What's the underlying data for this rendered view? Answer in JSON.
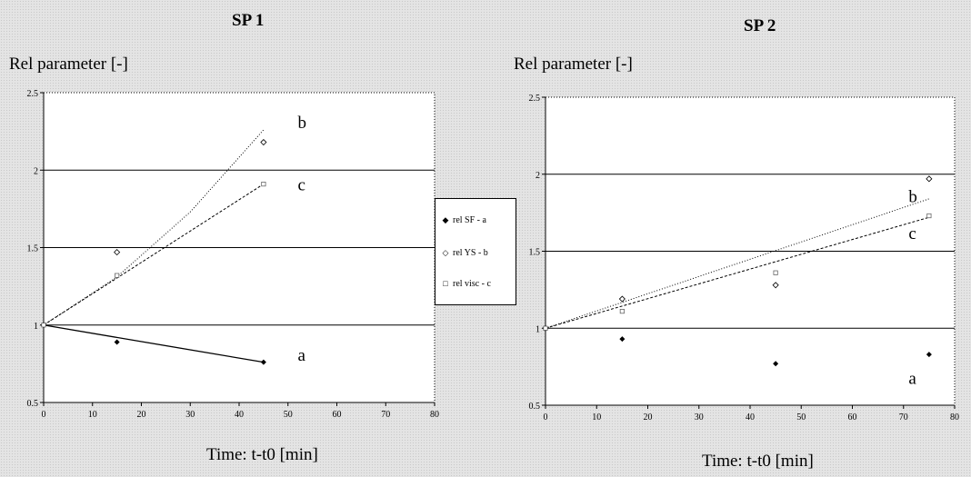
{
  "chart_data": [
    {
      "type": "scatter",
      "title": "SP 1",
      "ylabel": "Rel parameter [-]",
      "xlabel": "Time: t-t0 [min]",
      "xlim": [
        0,
        80
      ],
      "ylim": [
        0.5,
        2.5
      ],
      "xticks": [
        "0",
        "10",
        "20",
        "30",
        "40",
        "50",
        "60",
        "70",
        "80"
      ],
      "yticks": [
        "0.5",
        "1",
        "1.5",
        "2",
        "2.5"
      ],
      "gridlines_y": [
        1,
        1.5,
        2
      ],
      "series": [
        {
          "name": "rel SF - a",
          "label": "a",
          "x": [
            0,
            15,
            45
          ],
          "y": [
            1,
            0.89,
            0.76
          ],
          "trend": [
            [
              0,
              1
            ],
            [
              45,
              0.76
            ]
          ],
          "trend_style": "solid"
        },
        {
          "name": "rel YS - b",
          "label": "b",
          "x": [
            0,
            15,
            45
          ],
          "y": [
            1,
            1.47,
            2.18
          ],
          "trend": [
            [
              0,
              1
            ],
            [
              15,
              1.31
            ],
            [
              30,
              1.73
            ],
            [
              45,
              2.26
            ]
          ],
          "trend_style": "dotted"
        },
        {
          "name": "rel visc - c",
          "label": "c",
          "x": [
            0,
            15,
            45
          ],
          "y": [
            1,
            1.32,
            1.91
          ],
          "trend": [
            [
              0,
              1
            ],
            [
              45,
              1.91
            ]
          ],
          "trend_style": "dashed"
        }
      ],
      "curve_labels": [
        {
          "text": "b",
          "x": 52,
          "y": 2.27
        },
        {
          "text": "c",
          "x": 52,
          "y": 1.87
        },
        {
          "text": "a",
          "x": 52,
          "y": 0.77
        }
      ]
    },
    {
      "type": "scatter",
      "title": "SP 2",
      "ylabel": "Rel parameter [-]",
      "xlabel": "Time: t-t0 [min]",
      "xlim": [
        0,
        80
      ],
      "ylim": [
        0.5,
        2.5
      ],
      "xticks": [
        "0",
        "10",
        "20",
        "30",
        "40",
        "50",
        "60",
        "70",
        "80"
      ],
      "yticks": [
        "0.5",
        "1",
        "1.5",
        "2",
        "2.5"
      ],
      "gridlines_y": [
        1,
        1.5,
        2
      ],
      "series": [
        {
          "name": "rel SF - a",
          "label": "a",
          "x": [
            0,
            15,
            45,
            75
          ],
          "y": [
            1,
            0.93,
            0.77,
            0.83
          ],
          "trend": [],
          "trend_style": "none"
        },
        {
          "name": "rel YS - b",
          "label": "b",
          "x": [
            0,
            15,
            45,
            75
          ],
          "y": [
            1,
            1.19,
            1.28,
            1.97
          ],
          "trend": [
            [
              0,
              1
            ],
            [
              75,
              1.84
            ]
          ],
          "trend_style": "dotted"
        },
        {
          "name": "rel visc - c",
          "label": "c",
          "x": [
            0,
            15,
            45,
            75
          ],
          "y": [
            1,
            1.11,
            1.36,
            1.73
          ],
          "trend": [
            [
              0,
              1
            ],
            [
              75,
              1.72
            ]
          ],
          "trend_style": "dashed"
        }
      ],
      "curve_labels": [
        {
          "text": "b",
          "x": 71,
          "y": 1.82
        },
        {
          "text": "c",
          "x": 71,
          "y": 1.58
        },
        {
          "text": "a",
          "x": 71,
          "y": 0.64
        }
      ]
    }
  ],
  "legend": {
    "items": [
      {
        "label": "rel SF - a",
        "marker": "filled-diamond"
      },
      {
        "label": "rel YS - b",
        "marker": "open-diamond"
      },
      {
        "label": "rel visc - c",
        "marker": "open-square"
      }
    ]
  },
  "colors": {
    "marker": "#000000",
    "plot_bg": "#ffffff",
    "page_bg": "#e4e4e4"
  }
}
